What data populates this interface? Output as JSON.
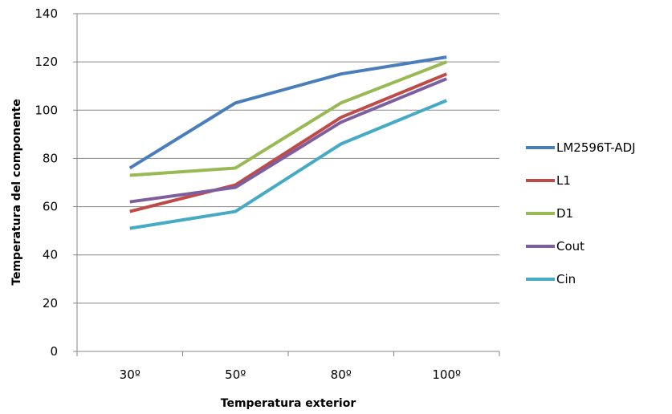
{
  "chart_data": {
    "type": "line",
    "categories": [
      "30º",
      "50º",
      "80º",
      "100º"
    ],
    "series": [
      {
        "name": "LM2596T-ADJ",
        "color": "#4a7ebb",
        "values": [
          76,
          103,
          115,
          122
        ]
      },
      {
        "name": "L1",
        "color": "#be4b48",
        "values": [
          58,
          69,
          97,
          115
        ]
      },
      {
        "name": "D1",
        "color": "#98b954",
        "values": [
          73,
          76,
          103,
          120
        ]
      },
      {
        "name": "Cout",
        "color": "#7d5fa0",
        "values": [
          62,
          68,
          95,
          113
        ]
      },
      {
        "name": "Cin",
        "color": "#46aac5",
        "values": [
          51,
          58,
          86,
          104
        ]
      }
    ],
    "xlabel": "Temperatura exterior",
    "ylabel": "Temperatura del componente",
    "ylim": [
      0,
      140
    ],
    "yticks": [
      0,
      20,
      40,
      60,
      80,
      100,
      120,
      140
    ],
    "grid": true,
    "legend_position": "right"
  }
}
